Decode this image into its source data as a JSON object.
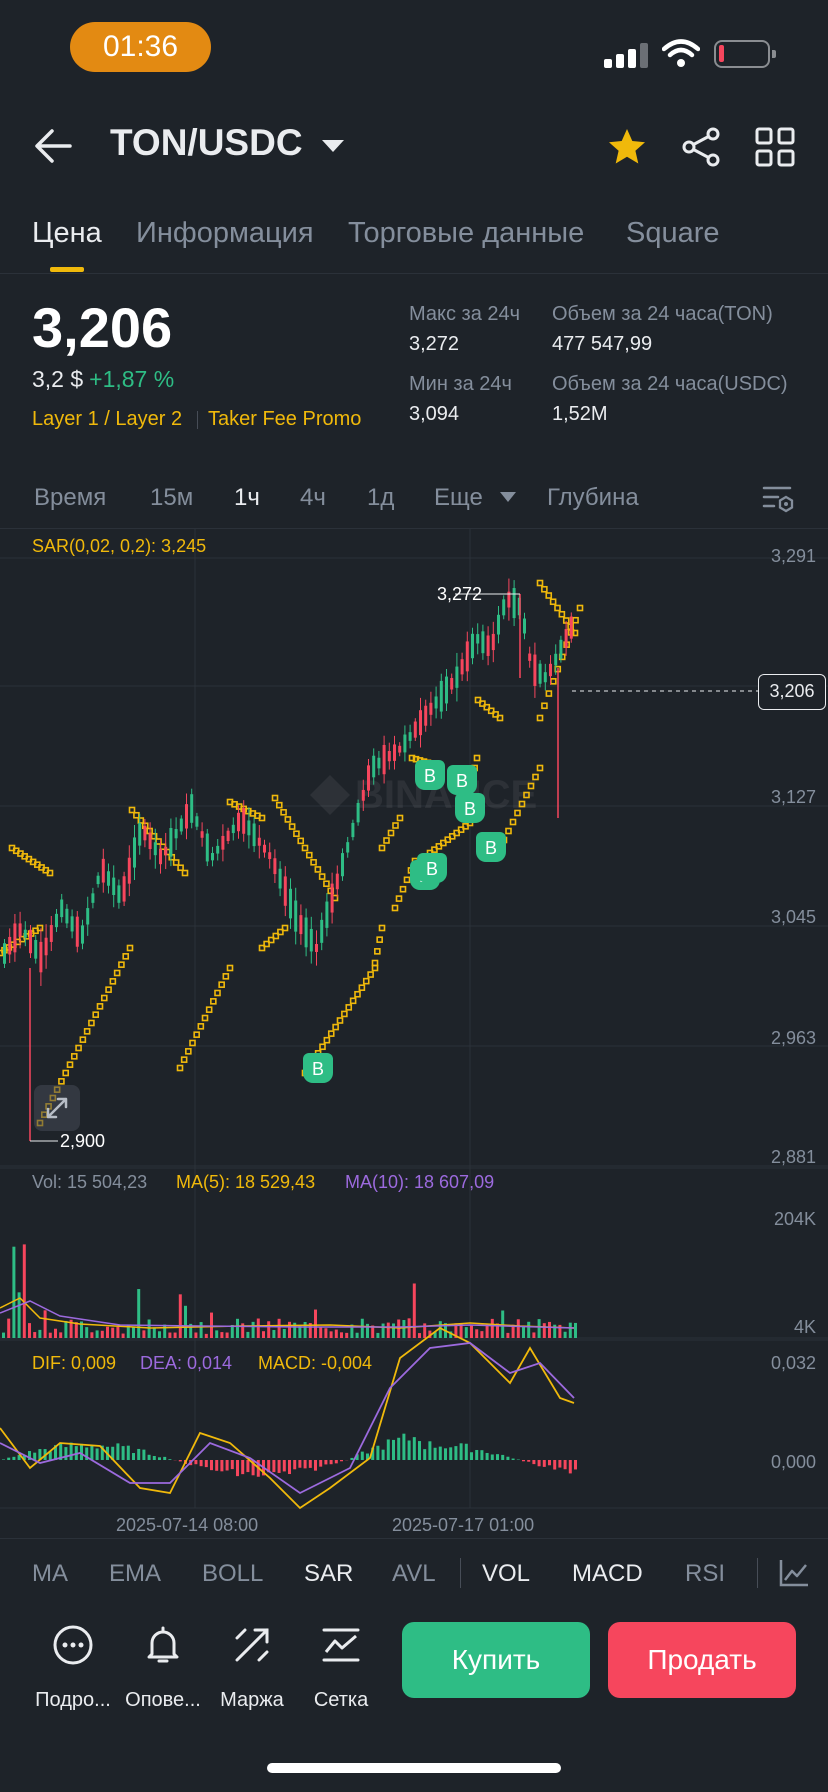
{
  "status_bar": {
    "time": "01:36"
  },
  "header": {
    "pair": "TON/USDC"
  },
  "tabs": [
    {
      "label": "Цена"
    },
    {
      "label": "Информация"
    },
    {
      "label": "Торговые данные"
    },
    {
      "label": "Square"
    }
  ],
  "price": {
    "last": "3,206",
    "usd": "3,2 $",
    "change": "+1,87 %",
    "tags": [
      "Layer 1 / Layer 2",
      "Taker Fee Promo"
    ]
  },
  "stats": {
    "high_label": "Макс за 24ч",
    "high": "3,272",
    "low_label": "Мин за 24ч",
    "low": "3,094",
    "vol_ton_label": "Объем за 24 часа(TON)",
    "vol_ton": "477 547,99",
    "vol_usdc_label": "Объем за 24 часа(USDC)",
    "vol_usdc": "1,52M"
  },
  "timeframes": [
    {
      "label": "Время"
    },
    {
      "label": "15м"
    },
    {
      "label": "1ч"
    },
    {
      "label": "4ч"
    },
    {
      "label": "1д"
    },
    {
      "label": "Еще"
    },
    {
      "label": "Глубина"
    }
  ],
  "chart": {
    "sar_label": "SAR(0,02, 0,2): 3,245",
    "y_axis": [
      "3,291",
      "3,127",
      "3,045",
      "2,963",
      "2,881"
    ],
    "current_price": "3,206",
    "max_label": "3,272",
    "min_label": "2,900",
    "buy_marker": "B",
    "vol_line": {
      "vol": "Vol: 15 504,23",
      "ma5": "MA(5): 18 529,43",
      "ma10": "MA(10): 18 607,09"
    },
    "vol_axis": [
      "204K",
      "4K"
    ],
    "macd_line": {
      "dif": "DIF: 0,009",
      "dea": "DEA: 0,014",
      "macd": "MACD: -0,004"
    },
    "macd_axis": [
      "0,032",
      "0,000"
    ],
    "x_axis": [
      "2025-07-14 08:00",
      "2025-07-17 01:00"
    ],
    "colors": {
      "up": "#2ebd85",
      "down": "#f6465d",
      "sar": "#f0b90b",
      "dea": "#9c6ade"
    }
  },
  "indicators": [
    {
      "label": "MA"
    },
    {
      "label": "EMA"
    },
    {
      "label": "BOLL"
    },
    {
      "label": "SAR"
    },
    {
      "label": "AVL"
    },
    {
      "label": "VOL"
    },
    {
      "label": "MACD"
    },
    {
      "label": "RSI"
    }
  ],
  "actions": [
    {
      "label": "Подро..."
    },
    {
      "label": "Опове..."
    },
    {
      "label": "Маржа"
    },
    {
      "label": "Сетка"
    }
  ],
  "buttons": {
    "buy": "Купить",
    "sell": "Продать"
  }
}
